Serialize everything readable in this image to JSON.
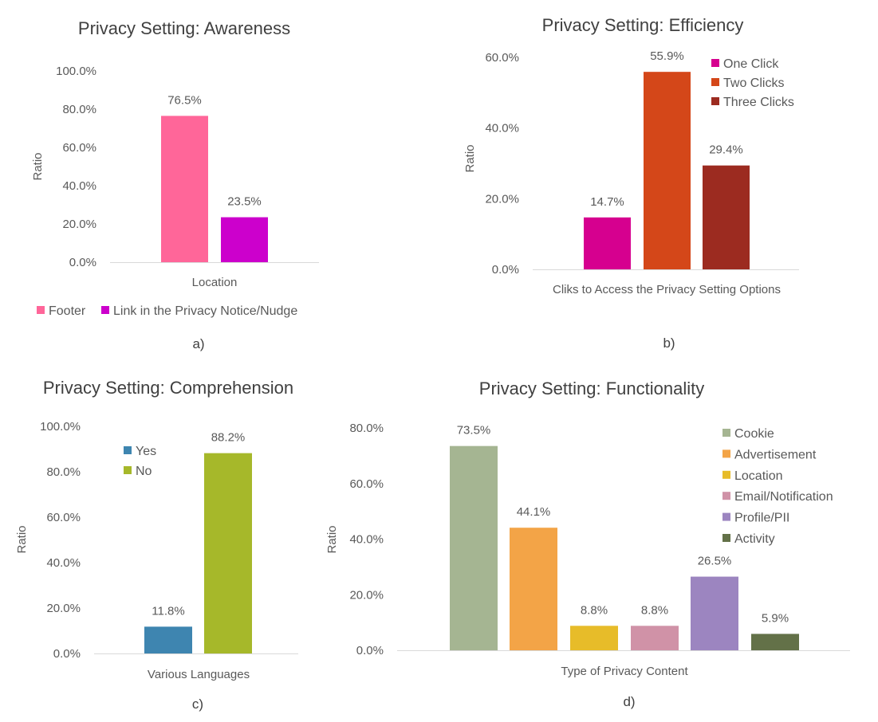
{
  "charts": [
    {
      "id": "a",
      "caption": "a)",
      "chart_data": {
        "type": "bar",
        "title": "Privacy Setting: Awareness",
        "xlabel": "Location",
        "ylabel": "Ratio",
        "categories": [
          "Location"
        ],
        "series": [
          {
            "name": "Footer",
            "values": [
              76.5
            ],
            "label": "76.5%",
            "color": "#ff6699"
          },
          {
            "name": "Link in the Privacy Notice/Nudge",
            "values": [
              23.5
            ],
            "label": "23.5%",
            "color": "#cc00cc"
          }
        ],
        "ylim": [
          0,
          100
        ],
        "yticks": [
          "0.0%",
          "20.0%",
          "40.0%",
          "60.0%",
          "80.0%",
          "100.0%"
        ],
        "grid": false,
        "legend_position": "bottom"
      }
    },
    {
      "id": "b",
      "caption": "b)",
      "chart_data": {
        "type": "bar",
        "title": "Privacy Setting: Efficiency",
        "xlabel": "Cliks to Access the Privacy Setting Options",
        "ylabel": "Ratio",
        "categories": [
          "Cliks to Access the Privacy Setting Options"
        ],
        "series": [
          {
            "name": "One Click",
            "values": [
              14.7
            ],
            "label": "14.7%",
            "color": "#d6008f"
          },
          {
            "name": "Two Clicks",
            "values": [
              55.9
            ],
            "label": "55.9%",
            "color": "#d44719"
          },
          {
            "name": "Three Clicks",
            "values": [
              29.4
            ],
            "label": "29.4%",
            "color": "#9c2b20"
          }
        ],
        "ylim": [
          0,
          60
        ],
        "yticks": [
          "0.0%",
          "20.0%",
          "40.0%",
          "60.0%"
        ],
        "grid": false,
        "legend_position": "top-right"
      }
    },
    {
      "id": "c",
      "caption": "c)",
      "chart_data": {
        "type": "bar",
        "title": "Privacy Setting: Comprehension",
        "xlabel": "Various Languages",
        "ylabel": "Ratio",
        "categories": [
          "Various Languages"
        ],
        "series": [
          {
            "name": "Yes",
            "values": [
              11.8
            ],
            "label": "11.8%",
            "color": "#3e85b0"
          },
          {
            "name": "No",
            "values": [
              88.2
            ],
            "label": "88.2%",
            "color": "#a6b82a"
          }
        ],
        "ylim": [
          0,
          100
        ],
        "yticks": [
          "0.0%",
          "20.0%",
          "40.0%",
          "60.0%",
          "80.0%",
          "100.0%"
        ],
        "grid": false,
        "legend_position": "top-left"
      }
    },
    {
      "id": "d",
      "caption": "d)",
      "chart_data": {
        "type": "bar",
        "title": "Privacy Setting: Functionality",
        "xlabel": "Type of Privacy  Content",
        "ylabel": "Ratio",
        "categories": [
          "Type of Privacy  Content"
        ],
        "series": [
          {
            "name": "Cookie",
            "values": [
              73.5
            ],
            "label": "73.5%",
            "color": "#a5b592"
          },
          {
            "name": "Advertisement",
            "values": [
              44.1
            ],
            "label": "44.1%",
            "color": "#f3a447"
          },
          {
            "name": "Location",
            "values": [
              8.8
            ],
            "label": "8.8%",
            "color": "#e7bc29"
          },
          {
            "name": "Email/Notification",
            "values": [
              8.8
            ],
            "label": "8.8%",
            "color": "#d092a7"
          },
          {
            "name": "Profile/PII",
            "values": [
              26.5
            ],
            "label": "26.5%",
            "color": "#9c85c0"
          },
          {
            "name": "Activity",
            "values": [
              5.9
            ],
            "label": "5.9%",
            "color": "#637148"
          }
        ],
        "ylim": [
          0,
          80
        ],
        "yticks": [
          "0.0%",
          "20.0%",
          "40.0%",
          "60.0%",
          "80.0%"
        ],
        "grid": false,
        "legend_position": "top-right"
      }
    }
  ]
}
